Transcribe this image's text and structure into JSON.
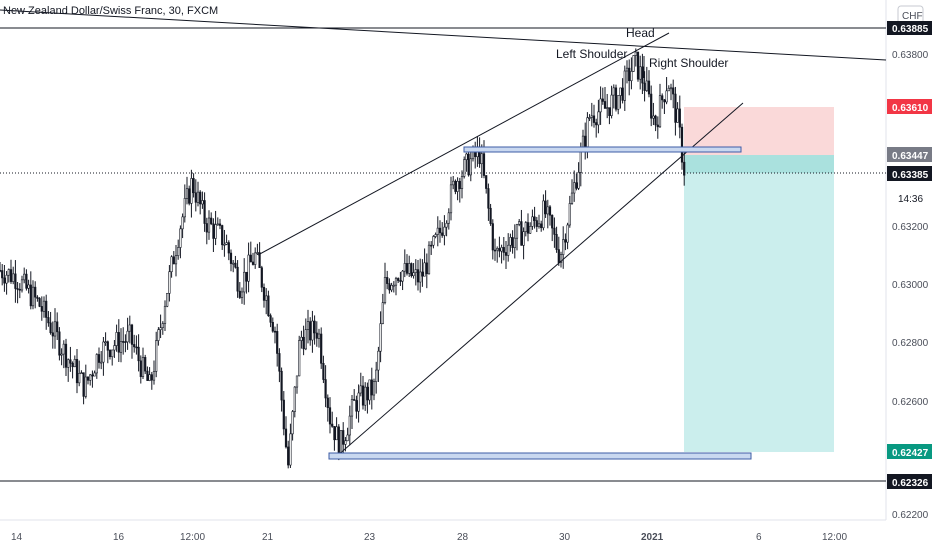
{
  "chart_data": {
    "type": "candlestick",
    "title": "New Zealand Dollar/Swiss Franc, 30, FXCM",
    "currency": "CHF",
    "x_ticks": [
      "14",
      "16",
      "12:00",
      "21",
      "23",
      "28",
      "30",
      "2021",
      "6",
      "12:00"
    ],
    "y_ticks": [
      "0.63800",
      "0.63200",
      "0.63000",
      "0.62800",
      "0.62600",
      "0.62200"
    ],
    "ylim": [
      0.622,
      0.6397
    ],
    "price_levels": {
      "top_line": "0.63885",
      "take_profit": "0.62427",
      "stop_loss": "0.63610",
      "entry": "0.63447",
      "current": "0.63385",
      "countdown": "14:36",
      "support": "0.62326"
    },
    "annotations": [
      "Head",
      "Left Shoulder",
      "Right Shoulder"
    ],
    "ohlc_anchor_points": [
      [
        0,
        0.6305
      ],
      [
        15,
        0.6303
      ],
      [
        40,
        0.6293
      ],
      [
        60,
        0.628
      ],
      [
        85,
        0.6265
      ],
      [
        100,
        0.6278
      ],
      [
        130,
        0.6282
      ],
      [
        150,
        0.6265
      ],
      [
        165,
        0.6295
      ],
      [
        180,
        0.632
      ],
      [
        192,
        0.6335
      ],
      [
        205,
        0.6322
      ],
      [
        225,
        0.6315
      ],
      [
        240,
        0.63
      ],
      [
        255,
        0.631
      ],
      [
        275,
        0.6285
      ],
      [
        288,
        0.6238
      ],
      [
        300,
        0.6282
      ],
      [
        318,
        0.6285
      ],
      [
        330,
        0.6255
      ],
      [
        340,
        0.6245
      ],
      [
        355,
        0.626
      ],
      [
        375,
        0.6265
      ],
      [
        385,
        0.63
      ],
      [
        400,
        0.6305
      ],
      [
        420,
        0.6302
      ],
      [
        440,
        0.6318
      ],
      [
        455,
        0.6335
      ],
      [
        470,
        0.6342
      ],
      [
        480,
        0.6345
      ],
      [
        495,
        0.631
      ],
      [
        510,
        0.6315
      ],
      [
        530,
        0.632
      ],
      [
        545,
        0.6325
      ],
      [
        560,
        0.631
      ],
      [
        575,
        0.6335
      ],
      [
        590,
        0.6358
      ],
      [
        605,
        0.636
      ],
      [
        620,
        0.6365
      ],
      [
        635,
        0.6376
      ],
      [
        645,
        0.6368
      ],
      [
        655,
        0.6355
      ],
      [
        668,
        0.637
      ],
      [
        678,
        0.6355
      ],
      [
        686,
        0.6335
      ]
    ]
  }
}
